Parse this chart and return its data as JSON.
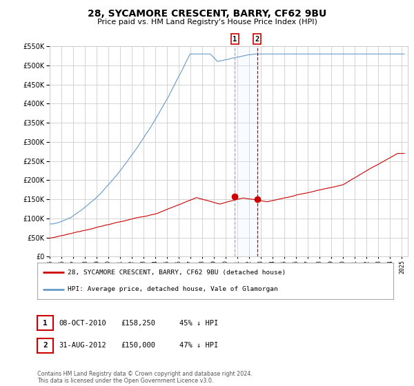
{
  "title": "28, SYCAMORE CRESCENT, BARRY, CF62 9BU",
  "subtitle": "Price paid vs. HM Land Registry's House Price Index (HPI)",
  "legend_label_red": "28, SYCAMORE CRESCENT, BARRY, CF62 9BU (detached house)",
  "legend_label_blue": "HPI: Average price, detached house, Vale of Glamorgan",
  "annotation1_label": "1",
  "annotation1_date": "08-OCT-2010",
  "annotation1_price": "£158,250",
  "annotation1_hpi": "45% ↓ HPI",
  "annotation2_label": "2",
  "annotation2_date": "31-AUG-2012",
  "annotation2_price": "£150,000",
  "annotation2_hpi": "47% ↓ HPI",
  "footer": "Contains HM Land Registry data © Crown copyright and database right 2024.\nThis data is licensed under the Open Government Licence v3.0.",
  "ylim": [
    0,
    550000
  ],
  "yticks": [
    0,
    50000,
    100000,
    150000,
    200000,
    250000,
    300000,
    350000,
    400000,
    450000,
    500000,
    550000
  ],
  "xlim_start": 1995.0,
  "xlim_end": 2025.5,
  "xticks": [
    1995,
    1996,
    1997,
    1998,
    1999,
    2000,
    2001,
    2002,
    2003,
    2004,
    2005,
    2006,
    2007,
    2008,
    2009,
    2010,
    2011,
    2012,
    2013,
    2014,
    2015,
    2016,
    2017,
    2018,
    2019,
    2020,
    2021,
    2022,
    2023,
    2024,
    2025
  ],
  "sale1_x": 2010.77,
  "sale1_y": 158250,
  "sale2_x": 2012.67,
  "sale2_y": 150000,
  "color_red": "#cc0000",
  "color_blue": "#6699cc",
  "color_vline1": "#aaaaaa",
  "color_vline2": "#cc0000",
  "color_shading": "#ddeeff",
  "background_color": "#ffffff",
  "grid_color": "#cccccc",
  "title_fontsize": 10,
  "subtitle_fontsize": 8
}
